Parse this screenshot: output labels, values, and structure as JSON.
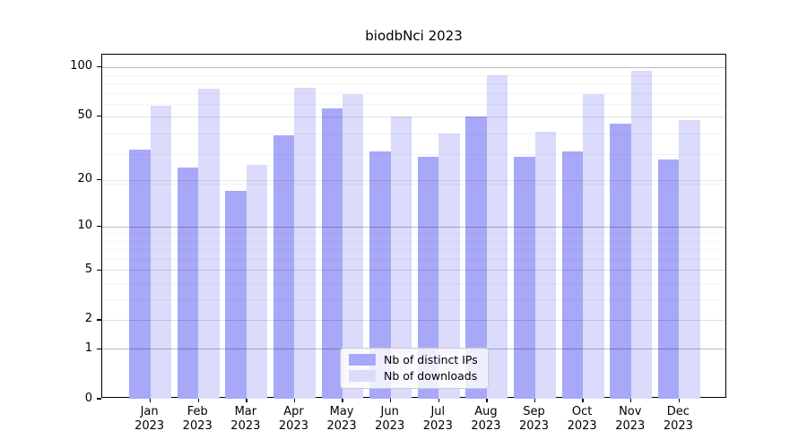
{
  "figure": {
    "title": "biodbNci 2023",
    "background_color": "#ffffff"
  },
  "chart_data": {
    "type": "bar",
    "title": "biodbNci 2023",
    "categories": [
      "Jan",
      "Feb",
      "Mar",
      "Apr",
      "May",
      "Jun",
      "Jul",
      "Aug",
      "Sep",
      "Oct",
      "Nov",
      "Dec"
    ],
    "x_year_label": "2023",
    "series": [
      {
        "name": "Nb of distinct IPs",
        "color": "#a8a8f8",
        "values": [
          31,
          24,
          17,
          38,
          56,
          30,
          28,
          50,
          28,
          30,
          45,
          27
        ]
      },
      {
        "name": "Nb of downloads",
        "color": "#dbdbfb",
        "values": [
          58,
          74,
          25,
          75,
          68,
          50,
          39,
          89,
          40,
          68,
          95,
          47
        ]
      }
    ],
    "xlabel": "",
    "ylabel": "",
    "yscale": "log1p",
    "ytick_values": [
      0,
      1,
      2,
      5,
      10,
      20,
      50,
      100
    ],
    "ylim": [
      0,
      119
    ],
    "grid": true,
    "legend": {
      "position": "lower center",
      "labels": [
        "Nb of distinct IPs",
        "Nb of downloads"
      ]
    }
  }
}
